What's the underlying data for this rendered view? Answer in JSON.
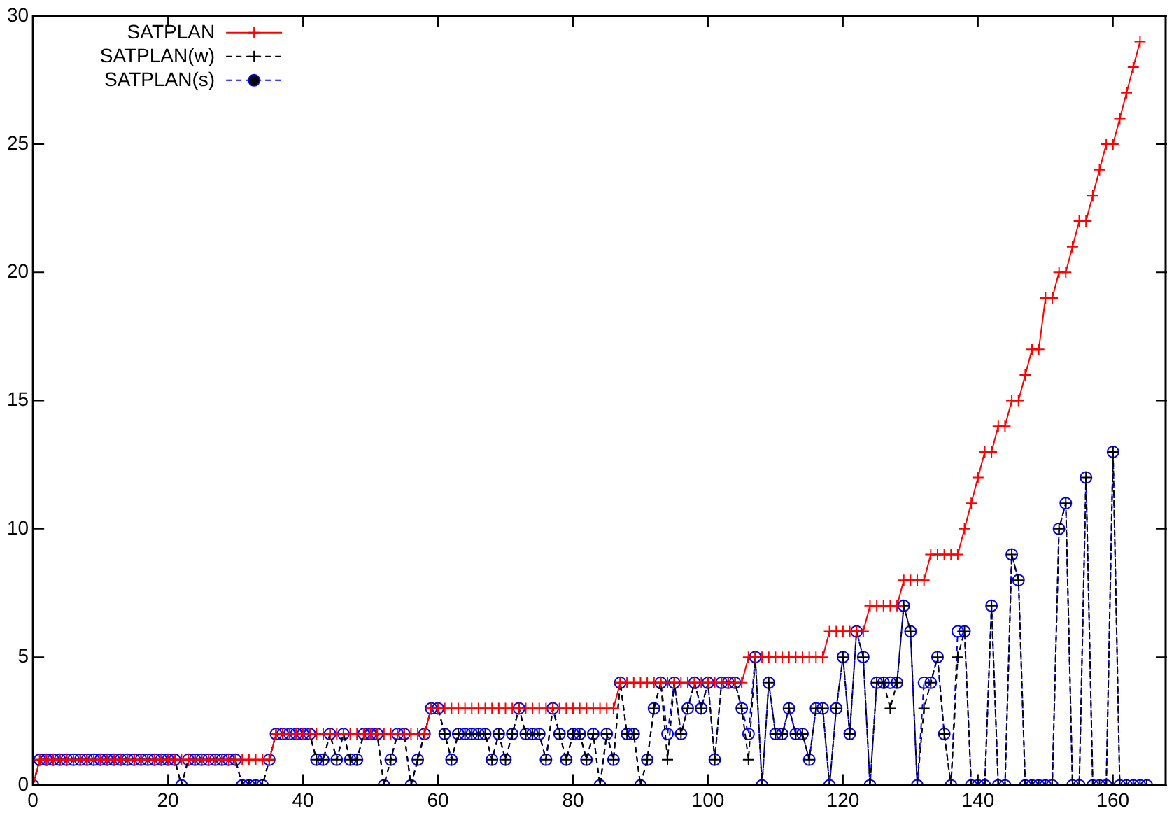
{
  "chart_data": {
    "type": "line",
    "xlim": [
      0,
      168
    ],
    "xticks": [
      0,
      20,
      40,
      60,
      80,
      100,
      120,
      140,
      160
    ],
    "ylim": [
      0,
      30
    ],
    "yticks": [
      0,
      5,
      10,
      15,
      20,
      25,
      30
    ],
    "legend": "top left",
    "x": [
      0,
      1,
      2,
      3,
      4,
      5,
      6,
      7,
      8,
      9,
      10,
      11,
      12,
      13,
      14,
      15,
      16,
      17,
      18,
      19,
      20,
      21,
      22,
      23,
      24,
      25,
      26,
      27,
      28,
      29,
      30,
      31,
      32,
      33,
      34,
      35,
      36,
      37,
      38,
      39,
      40,
      41,
      42,
      43,
      44,
      45,
      46,
      47,
      48,
      49,
      50,
      51,
      52,
      53,
      54,
      55,
      56,
      57,
      58,
      59,
      60,
      61,
      62,
      63,
      64,
      65,
      66,
      67,
      68,
      69,
      70,
      71,
      72,
      73,
      74,
      75,
      76,
      77,
      78,
      79,
      80,
      81,
      82,
      83,
      84,
      85,
      86,
      87,
      88,
      89,
      90,
      91,
      92,
      93,
      94,
      95,
      96,
      97,
      98,
      99,
      100,
      101,
      102,
      103,
      104,
      105,
      106,
      107,
      108,
      109,
      110,
      111,
      112,
      113,
      114,
      115,
      116,
      117,
      118,
      119,
      120,
      121,
      122,
      123,
      124,
      125,
      126,
      127,
      128,
      129,
      130,
      131,
      132,
      133,
      134,
      135,
      136,
      137,
      138,
      139,
      140,
      141,
      142,
      143,
      144,
      145,
      146,
      147,
      148,
      149,
      150,
      151,
      152,
      153,
      154,
      155,
      156,
      157,
      158,
      159,
      160,
      161,
      162,
      163,
      164,
      165
    ],
    "series": [
      {
        "name": "SATPLAN",
        "color": "#ff0000",
        "marker": "cross",
        "line_style": "solid",
        "values": [
          0,
          1,
          1,
          1,
          1,
          1,
          1,
          1,
          1,
          1,
          1,
          1,
          1,
          1,
          1,
          1,
          1,
          1,
          1,
          1,
          1,
          1,
          1,
          1,
          1,
          1,
          1,
          1,
          1,
          1,
          1,
          1,
          1,
          1,
          1,
          1,
          2,
          2,
          2,
          2,
          2,
          2,
          2,
          2,
          2,
          2,
          2,
          2,
          2,
          2,
          2,
          2,
          2,
          2,
          2,
          2,
          2,
          2,
          2,
          3,
          3,
          3,
          3,
          3,
          3,
          3,
          3,
          3,
          3,
          3,
          3,
          3,
          3,
          3,
          3,
          3,
          3,
          3,
          3,
          3,
          3,
          3,
          3,
          3,
          3,
          3,
          3,
          4,
          4,
          4,
          4,
          4,
          4,
          4,
          4,
          4,
          4,
          4,
          4,
          4,
          4,
          4,
          4,
          4,
          4,
          4,
          5,
          5,
          5,
          5,
          5,
          5,
          5,
          5,
          5,
          5,
          5,
          5,
          6,
          6,
          6,
          6,
          6,
          6,
          7,
          7,
          7,
          7,
          7,
          8,
          8,
          8,
          8,
          9,
          9,
          9,
          9,
          9,
          10,
          11,
          12,
          13,
          13,
          14,
          14,
          15,
          15,
          16,
          17,
          17,
          19,
          19,
          20,
          20,
          21,
          22,
          22,
          23,
          24,
          25,
          25,
          26,
          27,
          28,
          29,
          null
        ]
      },
      {
        "name": "SATPLAN(w)",
        "color": "#000000",
        "marker": "cross",
        "line_style": "dashed",
        "values": [
          0,
          1,
          1,
          1,
          1,
          1,
          1,
          1,
          1,
          1,
          1,
          1,
          1,
          1,
          1,
          1,
          1,
          1,
          1,
          1,
          1,
          1,
          0,
          1,
          1,
          1,
          1,
          1,
          1,
          1,
          1,
          0,
          0,
          0,
          0,
          1,
          2,
          2,
          2,
          2,
          2,
          2,
          1,
          1,
          2,
          1,
          2,
          1,
          1,
          2,
          2,
          2,
          0,
          1,
          2,
          2,
          0,
          1,
          2,
          3,
          3,
          2,
          1,
          2,
          2,
          2,
          2,
          2,
          1,
          2,
          1,
          2,
          3,
          2,
          2,
          2,
          1,
          3,
          2,
          1,
          2,
          2,
          1,
          2,
          0,
          2,
          1,
          4,
          2,
          2,
          0,
          1,
          3,
          4,
          1,
          4,
          2,
          3,
          4,
          3,
          4,
          1,
          4,
          4,
          4,
          3,
          1,
          5,
          0,
          4,
          2,
          2,
          3,
          2,
          2,
          1,
          3,
          3,
          0,
          3,
          5,
          2,
          6,
          5,
          0,
          4,
          4,
          3,
          4,
          7,
          6,
          0,
          3,
          4,
          5,
          2,
          0,
          5,
          6,
          0,
          0,
          0,
          7,
          0,
          0,
          9,
          8,
          0,
          0,
          0,
          0,
          0,
          10,
          11,
          0,
          0,
          12,
          0,
          0,
          0,
          13,
          0,
          0,
          0,
          0,
          0
        ]
      },
      {
        "name": "SATPLAN(s)",
        "color": "#0000ff",
        "marker": "circle",
        "line_style": "dashed",
        "values": [
          0,
          1,
          1,
          1,
          1,
          1,
          1,
          1,
          1,
          1,
          1,
          1,
          1,
          1,
          1,
          1,
          1,
          1,
          1,
          1,
          1,
          1,
          0,
          1,
          1,
          1,
          1,
          1,
          1,
          1,
          1,
          0,
          0,
          0,
          0,
          1,
          2,
          2,
          2,
          2,
          2,
          2,
          1,
          1,
          2,
          1,
          2,
          1,
          1,
          2,
          2,
          2,
          0,
          1,
          2,
          2,
          0,
          1,
          2,
          3,
          3,
          2,
          1,
          2,
          2,
          2,
          2,
          2,
          1,
          2,
          1,
          2,
          3,
          2,
          2,
          2,
          1,
          3,
          2,
          1,
          2,
          2,
          1,
          2,
          0,
          2,
          1,
          4,
          2,
          2,
          0,
          1,
          3,
          4,
          2,
          4,
          2,
          3,
          4,
          3,
          4,
          1,
          4,
          4,
          4,
          3,
          2,
          5,
          0,
          4,
          2,
          2,
          3,
          2,
          2,
          1,
          3,
          3,
          0,
          3,
          5,
          2,
          6,
          5,
          0,
          4,
          4,
          4,
          4,
          7,
          6,
          0,
          4,
          4,
          5,
          2,
          0,
          6,
          6,
          0,
          0,
          0,
          7,
          0,
          0,
          9,
          8,
          0,
          0,
          0,
          0,
          0,
          10,
          11,
          0,
          0,
          12,
          0,
          0,
          0,
          13,
          0,
          0,
          0,
          0,
          0
        ]
      }
    ]
  }
}
